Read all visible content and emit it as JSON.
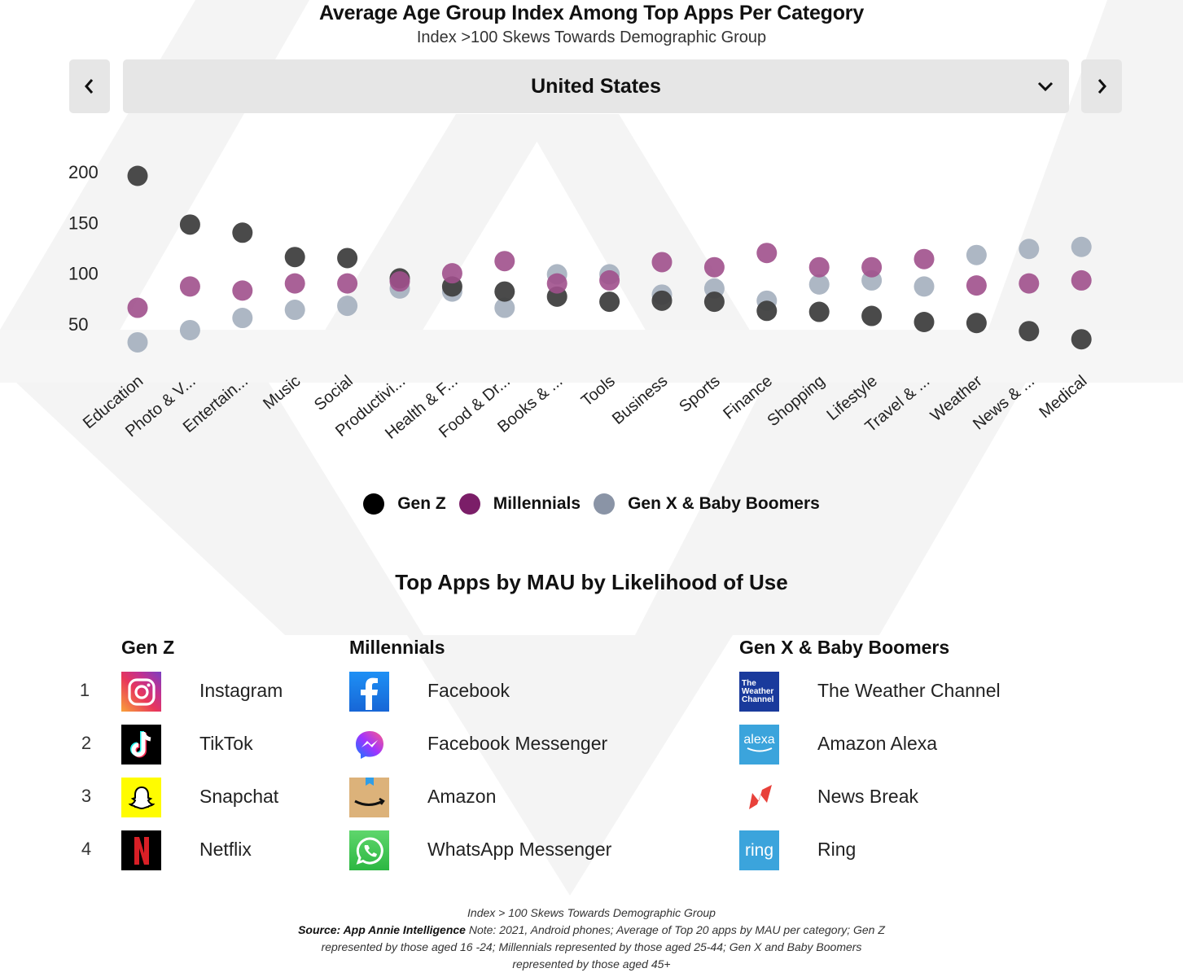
{
  "header": {
    "title": "Average Age Group Index Among Top Apps Per Category",
    "subtitle": "Index  >100 Skews Towards Demographic Group"
  },
  "selector": {
    "prev_icon": "chevron-left-icon",
    "next_icon": "chevron-right-icon",
    "dropdown_icon": "chevron-down-icon",
    "selected_value": "United States"
  },
  "colors": {
    "gen_z": "#404040",
    "millennials": "#a0508c",
    "gen_x": "#a4afbe",
    "legend_gen_z": "#000000",
    "legend_millennials": "#7b1e68",
    "legend_gen_x": "#8a94a6",
    "control_bg": "#e6e6e6"
  },
  "chart_data": {
    "type": "scatter",
    "title": "Average Age Group Index Among Top Apps Per Category",
    "subtitle": "Index  >100 Skews Towards Demographic Group",
    "xlabel": "",
    "ylabel": "",
    "ylim": [
      0,
      210
    ],
    "yticks": [
      50,
      100,
      150,
      200
    ],
    "grid": false,
    "legend_position": "bottom-center",
    "categories": [
      "Education",
      "Photo & V...",
      "Entertain...",
      "Music",
      "Social",
      "Productivi...",
      "Health & F...",
      "Food & Dr...",
      "Books & ...",
      "Tools",
      "Business",
      "Sports",
      "Finance",
      "Shopping",
      "Lifestyle",
      "Travel & ...",
      "Weather",
      "News & ...",
      "Medical"
    ],
    "series": [
      {
        "name": "Gen Z",
        "values": [
          196,
          148,
          140,
          116,
          115,
          95,
          87,
          82,
          77,
          72,
          73,
          72,
          63,
          62,
          58,
          52,
          51,
          43,
          35
        ]
      },
      {
        "name": "Millennials",
        "values": [
          66,
          87,
          83,
          90,
          90,
          92,
          100,
          112,
          90,
          93,
          111,
          106,
          120,
          106,
          106,
          114,
          88,
          90,
          93
        ]
      },
      {
        "name": "Gen X & Baby Boomers",
        "values": [
          32,
          44,
          56,
          64,
          68,
          85,
          82,
          66,
          99,
          99,
          79,
          85,
          73,
          89,
          93,
          87,
          118,
          124,
          126
        ]
      }
    ]
  },
  "legend": [
    {
      "label": "Gen Z"
    },
    {
      "label": "Millennials"
    },
    {
      "label": "Gen X & Baby Boomers"
    }
  ],
  "top_apps": {
    "title": "Top Apps by MAU by Likelihood of Use",
    "ranks": [
      "1",
      "2",
      "3",
      "4"
    ],
    "columns": [
      {
        "header": "Gen Z",
        "apps": [
          {
            "name": "Instagram",
            "icon": "instagram-icon"
          },
          {
            "name": "TikTok",
            "icon": "tiktok-icon"
          },
          {
            "name": "Snapchat",
            "icon": "snapchat-icon"
          },
          {
            "name": "Netflix",
            "icon": "netflix-icon"
          }
        ]
      },
      {
        "header": "Millennials",
        "apps": [
          {
            "name": "Facebook",
            "icon": "facebook-icon"
          },
          {
            "name": "Facebook Messenger",
            "icon": "messenger-icon"
          },
          {
            "name": "Amazon",
            "icon": "amazon-icon"
          },
          {
            "name": "WhatsApp Messenger",
            "icon": "whatsapp-icon"
          }
        ]
      },
      {
        "header": "Gen X & Baby Boomers",
        "apps": [
          {
            "name": "The Weather Channel",
            "icon": "weather-channel-icon",
            "icon_text": [
              "The",
              "Weather",
              "Channel"
            ]
          },
          {
            "name": "Amazon Alexa",
            "icon": "alexa-icon",
            "icon_text": [
              "alexa"
            ]
          },
          {
            "name": "News Break",
            "icon": "news-break-icon"
          },
          {
            "name": "Ring",
            "icon": "ring-icon",
            "icon_text": [
              "ring"
            ]
          }
        ]
      }
    ]
  },
  "footer": {
    "line1": "Index > 100 Skews Towards Demographic Group",
    "source_label": "Source: App Annie Intelligence",
    "note": " Note: 2021, Android phones; Average of Top 20 apps by MAU per category; Gen Z represented by those aged 16 -24; Millennials represented by those aged 25-44; Gen X and Baby Boomers represented by those aged 45+"
  }
}
